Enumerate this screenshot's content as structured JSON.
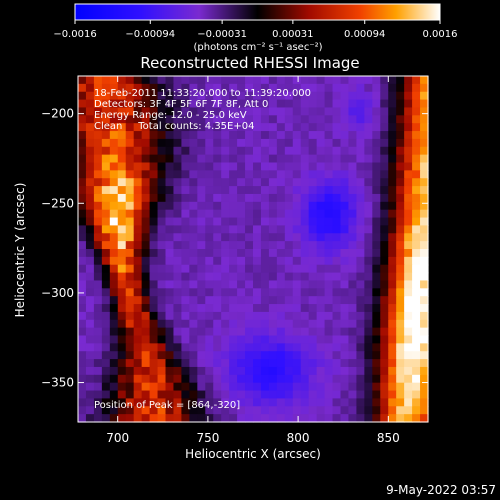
{
  "chart_data": {
    "type": "heatmap",
    "title": "Reconstructed RHESSI Image",
    "xlabel": "Heliocentric X (arcsec)",
    "ylabel": "Heliocentric Y (arcsec)",
    "xlim": [
      678,
      872
    ],
    "ylim": [
      -372,
      -179
    ],
    "x_ticks": [
      700,
      750,
      800,
      850
    ],
    "y_ticks": [
      -200,
      -250,
      -300,
      -350
    ],
    "x_tick_labels": [
      "700",
      "750",
      "800",
      "850"
    ],
    "y_tick_labels": [
      "−200",
      "−250",
      "−300",
      "−350"
    ],
    "colorbar": {
      "range": [
        -0.0016,
        0.0016
      ],
      "tick_labels": [
        "−0.0016",
        "−0.00094",
        "−0.00031",
        "0.00031",
        "0.00094",
        "0.0016"
      ],
      "tick_values": [
        -0.0016,
        -0.00094,
        -0.00031,
        0.00031,
        0.00094,
        0.0016
      ],
      "unit_label": "(photons cm⁻² s⁻¹ asec⁻²)",
      "colormap": [
        "#0000ff",
        "#7020e0",
        "#000000",
        "#c01000",
        "#ff9000",
        "#ffffff"
      ]
    },
    "annotations": [
      "18-Feb-2011 11:33:20.000 to 11:39:20.000",
      "Detectors: 3F 4F 5F 6F 7F 8F, Att 0",
      "Energy Range: 12.0 - 25.0 keV",
      "Clean     Total counts: 4.35E+04"
    ],
    "peak_label": "Position of Peak = [864,-320]",
    "peak": [
      864,
      -320
    ]
  },
  "footer": {
    "timestamp": "9-May-2022 03:57"
  }
}
